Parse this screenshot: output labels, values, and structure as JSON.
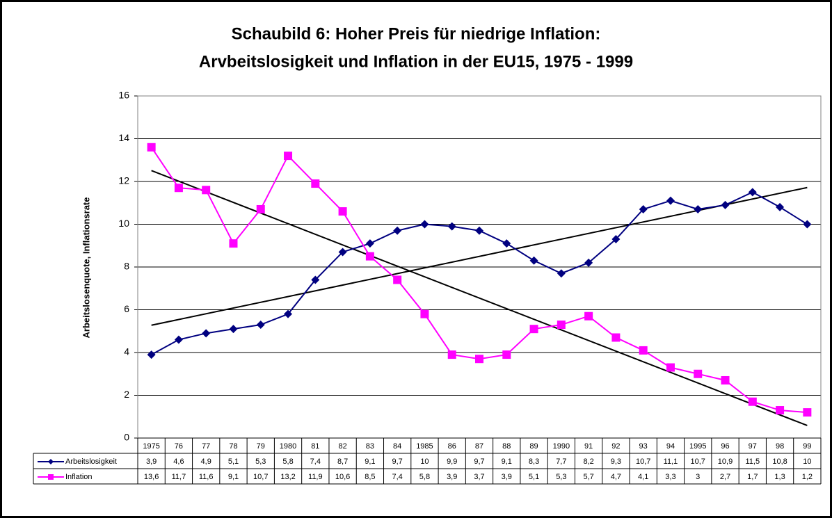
{
  "chart_data": {
    "type": "line",
    "title": [
      "Schaubild 6: Hoher Preis für niedrige Inflation:",
      "Arvbeitslosigkeit und Inflation in der EU15, 1975 - 1999"
    ],
    "y_label": "Arbeitslosenquote, Inflationsrate",
    "categories": [
      "1975",
      "76",
      "77",
      "78",
      "79",
      "1980",
      "81",
      "82",
      "83",
      "84",
      "1985",
      "86",
      "87",
      "88",
      "89",
      "1990",
      "91",
      "92",
      "93",
      "94",
      "1995",
      "96",
      "97",
      "98",
      "99"
    ],
    "series": [
      {
        "name": "Arbeitslosigkeit",
        "color": "#000080",
        "marker": "diamond",
        "values": [
          3.9,
          4.6,
          4.9,
          5.1,
          5.3,
          5.8,
          7.4,
          8.7,
          9.1,
          9.7,
          10,
          9.9,
          9.7,
          9.1,
          8.3,
          7.7,
          8.2,
          9.3,
          10.7,
          11.1,
          10.7,
          10.9,
          11.5,
          10.8,
          10
        ],
        "value_labels": [
          "3,9",
          "4,6",
          "4,9",
          "5,1",
          "5,3",
          "5,8",
          "7,4",
          "8,7",
          "9,1",
          "9,7",
          "10",
          "9,9",
          "9,7",
          "9,1",
          "8,3",
          "7,7",
          "8,2",
          "9,3",
          "10,7",
          "11,1",
          "10,7",
          "10,9",
          "11,5",
          "10,8",
          "10"
        ]
      },
      {
        "name": "Inflation",
        "color": "#ff00ff",
        "marker": "square",
        "values": [
          13.6,
          11.7,
          11.6,
          9.1,
          10.7,
          13.2,
          11.9,
          10.6,
          8.5,
          7.4,
          5.8,
          3.9,
          3.7,
          3.9,
          5.1,
          5.3,
          5.7,
          4.7,
          4.1,
          3.3,
          3,
          2.7,
          1.7,
          1.3,
          1.2
        ],
        "value_labels": [
          "13,6",
          "11,7",
          "11,6",
          "9,1",
          "10,7",
          "13,2",
          "11,9",
          "10,6",
          "8,5",
          "7,4",
          "5,8",
          "3,9",
          "3,7",
          "3,9",
          "5,1",
          "5,3",
          "5,7",
          "4,7",
          "4,1",
          "3,3",
          "3",
          "2,7",
          "1,7",
          "1,3",
          "1,2"
        ]
      }
    ],
    "ylim": [
      0,
      16
    ],
    "yticks": [
      0,
      2,
      4,
      6,
      8,
      10,
      12,
      14,
      16
    ],
    "grid": true,
    "trendline": "linear",
    "trendline_color": "#000000",
    "data_table": true
  }
}
